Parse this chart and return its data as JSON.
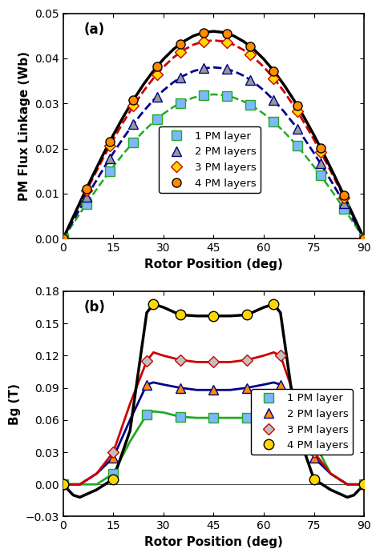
{
  "fig_width": 4.74,
  "fig_height": 6.96,
  "dpi": 100,
  "subplot_a": {
    "label": "(a)",
    "xlabel": "Rotor Position (deg)",
    "ylabel": "PM Flux Linkage (Wb)",
    "xlim": [
      0,
      90
    ],
    "ylim": [
      0,
      0.05
    ],
    "xticks": [
      0,
      15,
      30,
      45,
      60,
      75,
      90
    ],
    "yticks": [
      0,
      0.01,
      0.02,
      0.03,
      0.04,
      0.05
    ],
    "x_line": [
      0,
      3,
      6,
      9,
      12,
      15,
      18,
      21,
      24,
      27,
      30,
      33,
      36,
      39,
      42,
      45,
      48,
      51,
      54,
      57,
      60,
      63,
      66,
      69,
      72,
      75,
      78,
      81,
      84,
      87,
      90
    ],
    "x_markers": [
      0,
      7,
      14,
      21,
      28,
      35,
      42,
      49,
      56,
      63,
      70,
      77,
      84,
      90
    ],
    "series": [
      {
        "name": "1 PM layer",
        "line_color": "#22AA22",
        "marker_color": "#7EB6FF",
        "marker": "s",
        "linestyle": "--",
        "linewidth": 1.8,
        "markersize": 8,
        "amplitude": 0.032
      },
      {
        "name": "2 PM layers",
        "line_color": "#00008B",
        "marker_color": "#999999",
        "marker": "^",
        "linestyle": "--",
        "linewidth": 2.0,
        "markersize": 8,
        "amplitude": 0.038
      },
      {
        "name": "3 PM layers",
        "line_color": "#CC0000",
        "marker_color": "#FFD700",
        "marker": "D",
        "linestyle": "--",
        "linewidth": 2.0,
        "markersize": 7,
        "amplitude": 0.044
      },
      {
        "name": "4 PM layers",
        "line_color": "#000000",
        "marker_color": "#FF8C00",
        "marker": "o",
        "linestyle": "-",
        "linewidth": 2.5,
        "markersize": 8,
        "amplitude": 0.046
      }
    ]
  },
  "subplot_b": {
    "label": "(b)",
    "xlabel": "Rotor Position (deg)",
    "ylabel": "Bg (T)",
    "xlim": [
      0,
      90
    ],
    "ylim": [
      -0.03,
      0.18
    ],
    "xticks": [
      0,
      15,
      30,
      45,
      60,
      75,
      90
    ],
    "yticks": [
      -0.03,
      0,
      0.03,
      0.06,
      0.09,
      0.12,
      0.15,
      0.18
    ],
    "series": [
      {
        "name": "1 PM layer",
        "line_color": "#22AA22",
        "marker_color": "#7EB6FF",
        "marker": "s",
        "linestyle": "-",
        "linewidth": 2.0,
        "markersize": 8,
        "x": [
          0,
          5,
          10,
          15,
          20,
          25,
          27,
          30,
          35,
          40,
          45,
          50,
          55,
          60,
          63,
          65,
          70,
          75,
          80,
          85,
          90
        ],
        "y": [
          0.0,
          0.0,
          0.0,
          0.01,
          0.04,
          0.065,
          0.068,
          0.067,
          0.063,
          0.062,
          0.062,
          0.062,
          0.062,
          0.063,
          0.066,
          0.068,
          0.065,
          0.04,
          0.01,
          0.0,
          0.0
        ],
        "x_markers": [
          0,
          15,
          25,
          35,
          45,
          55,
          65,
          75,
          90
        ]
      },
      {
        "name": "2 PM layers",
        "line_color": "#00008B",
        "marker_color": "#FF8C00",
        "marker": "^",
        "linestyle": "-",
        "linewidth": 2.0,
        "markersize": 8,
        "x": [
          0,
          5,
          10,
          15,
          20,
          25,
          27,
          30,
          35,
          40,
          45,
          50,
          55,
          60,
          63,
          65,
          70,
          75,
          80,
          85,
          90
        ],
        "y": [
          0.0,
          0.0,
          0.01,
          0.025,
          0.06,
          0.093,
          0.095,
          0.093,
          0.09,
          0.088,
          0.088,
          0.088,
          0.09,
          0.093,
          0.095,
          0.093,
          0.06,
          0.025,
          0.01,
          0.0,
          0.0
        ],
        "x_markers": [
          0,
          15,
          25,
          35,
          45,
          55,
          65,
          75,
          90
        ]
      },
      {
        "name": "3 PM layers",
        "line_color": "#CC0000",
        "marker_color": "#C0C0C0",
        "marker": "D",
        "linestyle": "-",
        "linewidth": 2.0,
        "markersize": 7,
        "x": [
          0,
          5,
          10,
          15,
          20,
          25,
          27,
          30,
          35,
          40,
          45,
          50,
          55,
          60,
          63,
          65,
          70,
          75,
          80,
          85,
          90
        ],
        "y": [
          0.0,
          0.0,
          0.01,
          0.03,
          0.075,
          0.115,
          0.123,
          0.12,
          0.116,
          0.114,
          0.114,
          0.114,
          0.116,
          0.12,
          0.123,
          0.12,
          0.075,
          0.03,
          0.01,
          0.0,
          0.0
        ],
        "x_markers": [
          0,
          15,
          25,
          35,
          45,
          55,
          65,
          75,
          90
        ]
      },
      {
        "name": "4 PM layers",
        "line_color": "#000000",
        "marker_color": "#FFD700",
        "marker": "o",
        "linestyle": "-",
        "linewidth": 2.5,
        "markersize": 9,
        "x": [
          0,
          3,
          5,
          10,
          15,
          20,
          25,
          27,
          30,
          35,
          40,
          45,
          50,
          55,
          60,
          63,
          65,
          70,
          75,
          80,
          85,
          87,
          90
        ],
        "y": [
          0.0,
          -0.01,
          -0.012,
          -0.005,
          0.005,
          0.05,
          0.16,
          0.168,
          0.165,
          0.158,
          0.157,
          0.157,
          0.157,
          0.158,
          0.165,
          0.168,
          0.16,
          0.05,
          0.005,
          -0.005,
          -0.012,
          -0.01,
          0.0
        ],
        "x_markers": [
          0,
          15,
          27,
          35,
          45,
          55,
          63,
          75,
          90
        ]
      }
    ]
  }
}
